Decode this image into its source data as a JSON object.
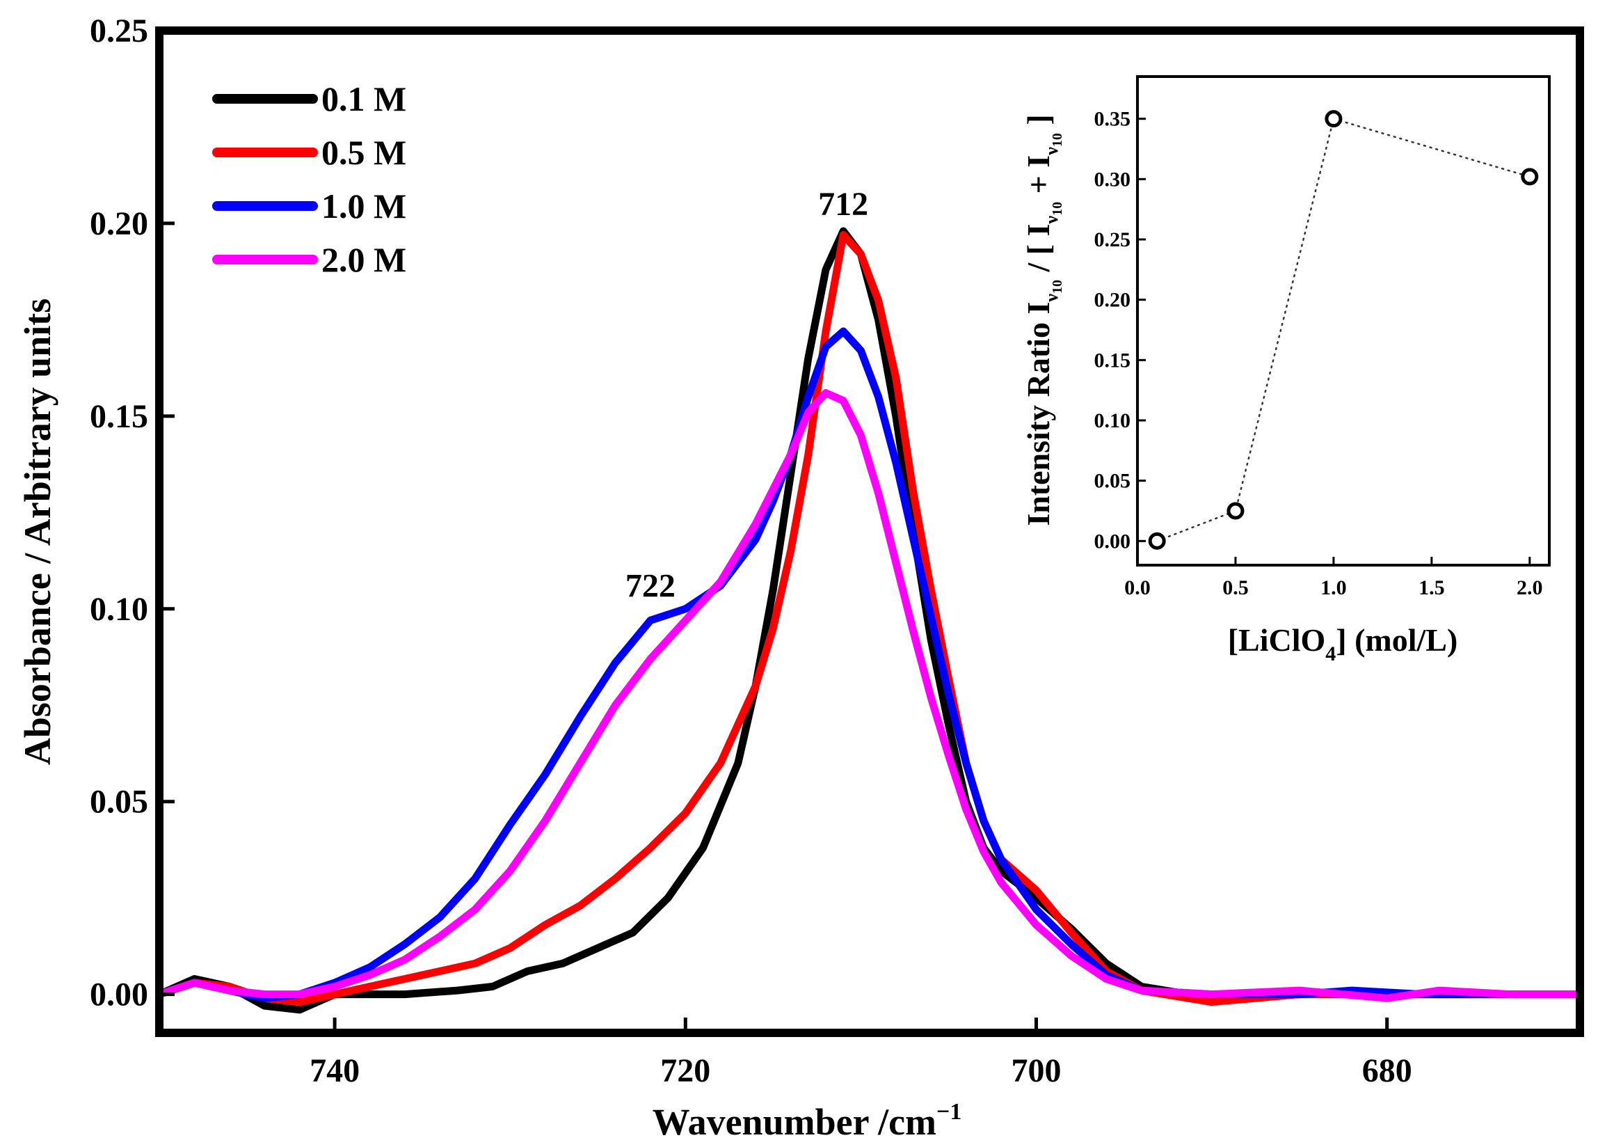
{
  "chart_data": [
    {
      "type": "line",
      "xlabel": "Wavenumber /cm",
      "xlabel_sup": "−1",
      "ylabel": "Absorbance / Arbitrary units",
      "xlim": [
        750,
        669
      ],
      "ylim": [
        -0.01,
        0.25
      ],
      "xticks": [
        "740",
        "720",
        "700",
        "680"
      ],
      "yticks": [
        "0.00",
        "0.05",
        "0.10",
        "0.15",
        "0.20",
        "0.25"
      ],
      "legend_position": "top-left",
      "annotations": [
        {
          "text": "712",
          "x": 711,
          "y": 0.205
        },
        {
          "text": "722",
          "x": 722,
          "y": 0.106
        }
      ],
      "series": [
        {
          "name": "0.1 M",
          "color": "#000000",
          "points": [
            [
              750,
              0.0
            ],
            [
              748,
              0.004
            ],
            [
              746,
              0.002
            ],
            [
              744,
              -0.003
            ],
            [
              742,
              -0.004
            ],
            [
              740,
              0.0
            ],
            [
              738,
              0.0
            ],
            [
              736,
              0.0
            ],
            [
              733,
              0.001
            ],
            [
              731,
              0.002
            ],
            [
              729,
              0.006
            ],
            [
              727,
              0.008
            ],
            [
              725,
              0.012
            ],
            [
              723,
              0.016
            ],
            [
              721,
              0.025
            ],
            [
              719,
              0.038
            ],
            [
              717,
              0.06
            ],
            [
              716,
              0.08
            ],
            [
              715,
              0.105
            ],
            [
              714,
              0.135
            ],
            [
              713,
              0.165
            ],
            [
              712,
              0.188
            ],
            [
              711,
              0.198
            ],
            [
              710,
              0.192
            ],
            [
              709,
              0.175
            ],
            [
              708,
              0.15
            ],
            [
              707,
              0.12
            ],
            [
              706,
              0.092
            ],
            [
              705,
              0.07
            ],
            [
              704,
              0.05
            ],
            [
              703,
              0.038
            ],
            [
              702,
              0.032
            ],
            [
              700,
              0.025
            ],
            [
              698,
              0.017
            ],
            [
              696,
              0.008
            ],
            [
              694,
              0.002
            ],
            [
              690,
              -0.001
            ],
            [
              685,
              0.0
            ],
            [
              680,
              0.0
            ],
            [
              675,
              0.0
            ],
            [
              669,
              0.0
            ]
          ]
        },
        {
          "name": "0.5 M",
          "color": "#ff0000",
          "points": [
            [
              750,
              0.0
            ],
            [
              748,
              0.003
            ],
            [
              746,
              0.002
            ],
            [
              744,
              -0.001
            ],
            [
              742,
              -0.002
            ],
            [
              740,
              0.0
            ],
            [
              738,
              0.002
            ],
            [
              736,
              0.004
            ],
            [
              734,
              0.006
            ],
            [
              732,
              0.008
            ],
            [
              730,
              0.012
            ],
            [
              728,
              0.018
            ],
            [
              726,
              0.023
            ],
            [
              724,
              0.03
            ],
            [
              722,
              0.038
            ],
            [
              720,
              0.047
            ],
            [
              718,
              0.06
            ],
            [
              716,
              0.08
            ],
            [
              715,
              0.095
            ],
            [
              714,
              0.115
            ],
            [
              713,
              0.14
            ],
            [
              712,
              0.172
            ],
            [
              711,
              0.197
            ],
            [
              710,
              0.192
            ],
            [
              709,
              0.18
            ],
            [
              708,
              0.16
            ],
            [
              707,
              0.13
            ],
            [
              706,
              0.105
            ],
            [
              705,
              0.082
            ],
            [
              704,
              0.06
            ],
            [
              703,
              0.045
            ],
            [
              702,
              0.035
            ],
            [
              700,
              0.027
            ],
            [
              698,
              0.016
            ],
            [
              696,
              0.006
            ],
            [
              694,
              0.001
            ],
            [
              690,
              -0.002
            ],
            [
              685,
              0.0
            ],
            [
              680,
              0.0
            ],
            [
              675,
              0.0
            ],
            [
              669,
              0.0
            ]
          ]
        },
        {
          "name": "1.0 M",
          "color": "#0000ff",
          "points": [
            [
              750,
              0.0
            ],
            [
              748,
              0.003
            ],
            [
              746,
              0.001
            ],
            [
              744,
              -0.001
            ],
            [
              742,
              0.0
            ],
            [
              740,
              0.003
            ],
            [
              738,
              0.007
            ],
            [
              736,
              0.013
            ],
            [
              734,
              0.02
            ],
            [
              732,
              0.03
            ],
            [
              730,
              0.044
            ],
            [
              728,
              0.057
            ],
            [
              726,
              0.072
            ],
            [
              724,
              0.086
            ],
            [
              722,
              0.097
            ],
            [
              720,
              0.1
            ],
            [
              718,
              0.106
            ],
            [
              716,
              0.118
            ],
            [
              715,
              0.128
            ],
            [
              714,
              0.14
            ],
            [
              713,
              0.155
            ],
            [
              712,
              0.168
            ],
            [
              711,
              0.172
            ],
            [
              710,
              0.167
            ],
            [
              709,
              0.155
            ],
            [
              708,
              0.138
            ],
            [
              707,
              0.118
            ],
            [
              706,
              0.098
            ],
            [
              705,
              0.078
            ],
            [
              704,
              0.06
            ],
            [
              703,
              0.045
            ],
            [
              702,
              0.035
            ],
            [
              700,
              0.022
            ],
            [
              698,
              0.013
            ],
            [
              696,
              0.005
            ],
            [
              694,
              0.001
            ],
            [
              690,
              0.0
            ],
            [
              685,
              0.0
            ],
            [
              682,
              0.001
            ],
            [
              678,
              0.0
            ],
            [
              675,
              0.0
            ],
            [
              669,
              0.0
            ]
          ]
        },
        {
          "name": "2.0 M",
          "color": "#ff00ff",
          "points": [
            [
              750,
              0.0
            ],
            [
              748,
              0.003
            ],
            [
              746,
              0.001
            ],
            [
              744,
              0.0
            ],
            [
              742,
              0.0
            ],
            [
              740,
              0.002
            ],
            [
              738,
              0.005
            ],
            [
              736,
              0.009
            ],
            [
              734,
              0.015
            ],
            [
              732,
              0.022
            ],
            [
              730,
              0.032
            ],
            [
              728,
              0.045
            ],
            [
              726,
              0.06
            ],
            [
              724,
              0.075
            ],
            [
              722,
              0.087
            ],
            [
              720,
              0.097
            ],
            [
              718,
              0.107
            ],
            [
              716,
              0.122
            ],
            [
              714,
              0.14
            ],
            [
              713,
              0.151
            ],
            [
              712,
              0.156
            ],
            [
              711,
              0.154
            ],
            [
              710,
              0.145
            ],
            [
              709,
              0.13
            ],
            [
              708,
              0.112
            ],
            [
              707,
              0.094
            ],
            [
              706,
              0.077
            ],
            [
              705,
              0.062
            ],
            [
              704,
              0.048
            ],
            [
              703,
              0.037
            ],
            [
              702,
              0.029
            ],
            [
              700,
              0.018
            ],
            [
              698,
              0.01
            ],
            [
              696,
              0.004
            ],
            [
              694,
              0.001
            ],
            [
              690,
              0.0
            ],
            [
              685,
              0.001
            ],
            [
              680,
              -0.001
            ],
            [
              677,
              0.001
            ],
            [
              673,
              0.0
            ],
            [
              669,
              0.0
            ]
          ]
        }
      ]
    },
    {
      "type": "scatter",
      "xlabel_prefix": "[LiClO",
      "xlabel_sub": "4",
      "xlabel_suffix": "]  (mol/L)",
      "ylabel": "Intensity Ratio I",
      "ylabel_sub1": "ν",
      "ylabel_sub2": "10",
      "ylabel_mid": " / [ I",
      "ylabel_plus": " + I",
      "ylabel_end": " ]",
      "xlim": [
        0.0,
        2.1
      ],
      "ylim": [
        -0.02,
        0.385
      ],
      "xticks": [
        "0.0",
        "0.5",
        "1.0",
        "1.5",
        "2.0"
      ],
      "yticks": [
        "0.00",
        "0.05",
        "0.10",
        "0.15",
        "0.20",
        "0.25",
        "0.30",
        "0.35"
      ],
      "x": [
        0.1,
        0.5,
        1.0,
        2.0
      ],
      "y": [
        0.0,
        0.025,
        0.35,
        0.302
      ],
      "marker": "open-circle",
      "line_style": "dotted"
    }
  ]
}
